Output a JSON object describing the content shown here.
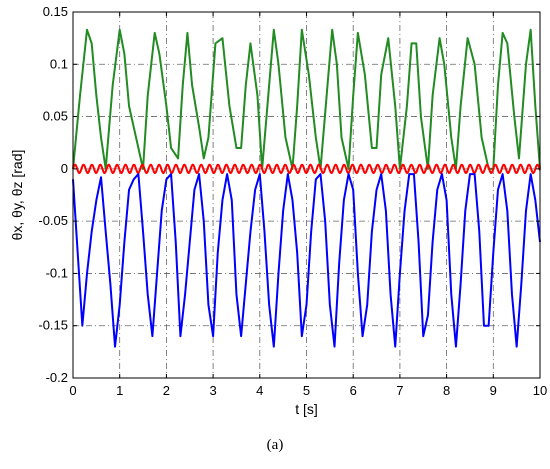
{
  "chart_data": {
    "type": "line",
    "xlabel": "t [s]",
    "ylabel": "θx, θy, θz [rad]",
    "xlim": [
      0,
      10
    ],
    "ylim": [
      -0.2,
      0.15
    ],
    "x_ticks": [
      0,
      1,
      2,
      3,
      4,
      5,
      6,
      7,
      8,
      9,
      10
    ],
    "y_ticks": [
      -0.2,
      -0.15,
      -0.1,
      -0.05,
      0,
      0.05,
      0.1,
      0.15
    ],
    "y_tick_labels": [
      "-0.2",
      "-0.15",
      "-0.1",
      "-0.05",
      "0",
      "0.05",
      "0.1",
      "0.15"
    ],
    "grid": true,
    "series": [
      {
        "color": "#228B22",
        "x": [
          0,
          0.15,
          0.3,
          0.4,
          0.5,
          0.6,
          0.7,
          0.85,
          1.0,
          1.1,
          1.2,
          1.35,
          1.5,
          1.6,
          1.75,
          1.85,
          2.0,
          2.1,
          2.25,
          2.35,
          2.45,
          2.55,
          2.7,
          2.8,
          2.9,
          3.05,
          3.2,
          3.35,
          3.5,
          3.6,
          3.7,
          3.8,
          3.95,
          4.05,
          4.2,
          4.3,
          4.4,
          4.55,
          4.7,
          4.8,
          4.9,
          5.05,
          5.2,
          5.3,
          5.45,
          5.55,
          5.65,
          5.75,
          5.9,
          6.0,
          6.1,
          6.25,
          6.4,
          6.5,
          6.6,
          6.75,
          6.9,
          7.0,
          7.15,
          7.25,
          7.35,
          7.45,
          7.6,
          7.7,
          7.85,
          7.95,
          8.1,
          8.2,
          8.3,
          8.45,
          8.6,
          8.75,
          8.9,
          9.0,
          9.1,
          9.2,
          9.3,
          9.45,
          9.55,
          9.7,
          9.8,
          9.9,
          10.0
        ],
        "values": [
          0.0,
          0.07,
          0.133,
          0.12,
          0.07,
          0.03,
          0.0,
          0.08,
          0.133,
          0.11,
          0.06,
          0.03,
          0.0,
          0.07,
          0.13,
          0.11,
          0.06,
          0.02,
          0.01,
          0.08,
          0.13,
          0.08,
          0.04,
          0.01,
          0.03,
          0.12,
          0.125,
          0.06,
          0.02,
          0.02,
          0.08,
          0.12,
          0.07,
          0.0,
          0.08,
          0.133,
          0.1,
          0.03,
          0.0,
          0.06,
          0.133,
          0.09,
          0.03,
          0.0,
          0.08,
          0.133,
          0.1,
          0.03,
          0.0,
          0.07,
          0.13,
          0.09,
          0.02,
          0.02,
          0.09,
          0.125,
          0.06,
          0.0,
          0.06,
          0.12,
          0.12,
          0.05,
          0.0,
          0.07,
          0.125,
          0.1,
          0.03,
          0.0,
          0.06,
          0.125,
          0.1,
          0.03,
          0.0,
          0.0,
          0.08,
          0.13,
          0.12,
          0.05,
          0.01,
          0.1,
          0.133,
          0.06,
          0.0
        ]
      },
      {
        "color": "#FF0000",
        "amplitude": 0.004,
        "period": 0.18,
        "x": [
          0,
          10
        ],
        "values": [
          -0.004,
          0.004
        ]
      },
      {
        "color": "#0000FF",
        "x": [
          0,
          0.1,
          0.2,
          0.3,
          0.4,
          0.5,
          0.6,
          0.7,
          0.8,
          0.9,
          1.0,
          1.1,
          1.2,
          1.3,
          1.4,
          1.5,
          1.6,
          1.7,
          1.8,
          1.9,
          2.0,
          2.1,
          2.2,
          2.3,
          2.4,
          2.5,
          2.6,
          2.7,
          2.8,
          2.9,
          3.0,
          3.1,
          3.2,
          3.3,
          3.4,
          3.5,
          3.6,
          3.7,
          3.8,
          3.9,
          4.0,
          4.1,
          4.2,
          4.3,
          4.4,
          4.5,
          4.6,
          4.7,
          4.8,
          4.9,
          5.0,
          5.1,
          5.2,
          5.3,
          5.4,
          5.5,
          5.6,
          5.7,
          5.8,
          5.9,
          6.0,
          6.1,
          6.2,
          6.3,
          6.4,
          6.5,
          6.6,
          6.7,
          6.8,
          6.9,
          7.0,
          7.1,
          7.2,
          7.3,
          7.4,
          7.5,
          7.6,
          7.7,
          7.8,
          7.9,
          8.0,
          8.1,
          8.2,
          8.3,
          8.4,
          8.5,
          8.6,
          8.7,
          8.8,
          8.9,
          9.0,
          9.1,
          9.2,
          9.3,
          9.4,
          9.5,
          9.6,
          9.7,
          9.8,
          9.9,
          10.0
        ],
        "values": [
          -0.01,
          -0.08,
          -0.15,
          -0.1,
          -0.06,
          -0.03,
          -0.008,
          -0.06,
          -0.11,
          -0.17,
          -0.13,
          -0.07,
          -0.02,
          -0.01,
          -0.005,
          -0.06,
          -0.12,
          -0.16,
          -0.1,
          -0.04,
          -0.01,
          -0.005,
          -0.07,
          -0.16,
          -0.12,
          -0.07,
          -0.02,
          -0.005,
          -0.05,
          -0.13,
          -0.16,
          -0.08,
          -0.03,
          -0.005,
          -0.03,
          -0.12,
          -0.16,
          -0.11,
          -0.06,
          -0.02,
          -0.005,
          -0.06,
          -0.13,
          -0.17,
          -0.1,
          -0.04,
          -0.005,
          -0.03,
          -0.08,
          -0.16,
          -0.13,
          -0.06,
          -0.01,
          -0.005,
          -0.05,
          -0.13,
          -0.17,
          -0.09,
          -0.03,
          -0.005,
          -0.02,
          -0.1,
          -0.16,
          -0.13,
          -0.06,
          -0.02,
          -0.005,
          -0.04,
          -0.12,
          -0.17,
          -0.1,
          -0.04,
          -0.005,
          -0.005,
          -0.07,
          -0.16,
          -0.14,
          -0.07,
          -0.02,
          -0.005,
          -0.03,
          -0.12,
          -0.17,
          -0.11,
          -0.04,
          -0.005,
          -0.005,
          -0.06,
          -0.15,
          -0.15,
          -0.08,
          -0.02,
          -0.005,
          -0.04,
          -0.12,
          -0.17,
          -0.11,
          -0.04,
          -0.005,
          -0.03,
          -0.07
        ]
      }
    ]
  },
  "caption": "(a)",
  "colors": {
    "grid": "#666666",
    "axes": "#000000",
    "background": "#ffffff"
  }
}
